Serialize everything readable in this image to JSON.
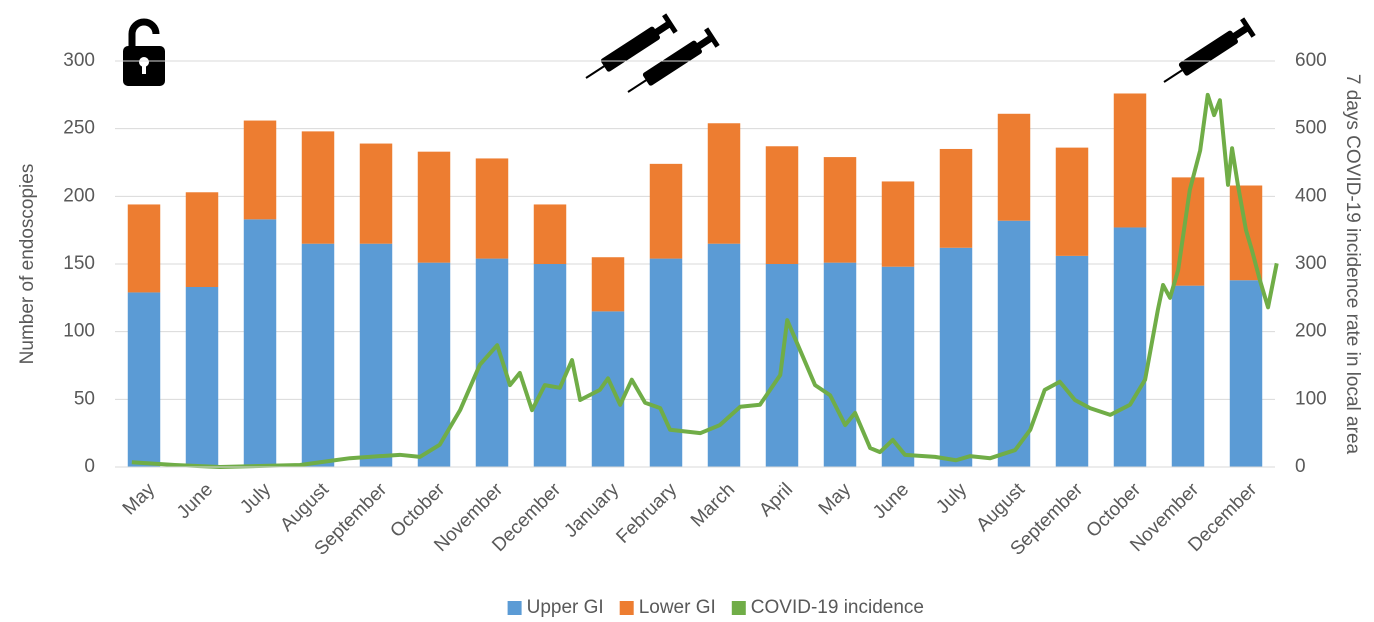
{
  "chart_data": {
    "type": "bar",
    "stacked": true,
    "categories": [
      "May",
      "June",
      "July",
      "August",
      "September",
      "October",
      "November",
      "December",
      "January",
      "February",
      "March",
      "April",
      "May",
      "June",
      "July",
      "August",
      "September",
      "October",
      "November",
      "December"
    ],
    "series": [
      {
        "name": "Upper GI",
        "color": "#5b9bd5",
        "values": [
          129,
          133,
          183,
          165,
          165,
          151,
          154,
          150,
          115,
          154,
          165,
          150,
          151,
          148,
          162,
          182,
          156,
          177,
          134,
          138
        ]
      },
      {
        "name": "Lower GI",
        "color": "#ed7d31",
        "values": [
          65,
          70,
          73,
          83,
          74,
          82,
          74,
          44,
          40,
          70,
          89,
          87,
          78,
          63,
          73,
          79,
          80,
          99,
          80,
          70
        ]
      },
      {
        "name": "COVID-19 incidence",
        "color": "#70ad47",
        "type": "line",
        "axis": "y2",
        "x": [
          -0.21,
          0.53,
          1.31,
          2.69,
          3.21,
          3.55,
          4.07,
          4.41,
          4.76,
          5.1,
          5.45,
          5.79,
          6.09,
          6.31,
          6.48,
          6.69,
          6.91,
          7.17,
          7.38,
          7.52,
          7.86,
          8.0,
          8.21,
          8.41,
          8.64,
          8.9,
          9.07,
          9.59,
          9.93,
          10.28,
          10.62,
          10.97,
          11.09,
          11.31,
          11.57,
          11.83,
          12.09,
          12.26,
          12.52,
          12.69,
          12.91,
          13.12,
          13.64,
          14.0,
          14.24,
          14.59,
          15.02,
          15.28,
          15.53,
          15.79,
          16.05,
          16.31,
          16.66,
          17.0,
          17.26,
          17.48,
          17.57,
          17.69,
          17.83,
          18.03,
          18.21,
          18.34,
          18.45,
          18.55,
          18.69,
          18.76,
          18.86,
          19.0,
          19.1,
          19.24,
          19.38,
          19.53
        ],
        "values": [
          7,
          3,
          0,
          3,
          9,
          13,
          16,
          18,
          15,
          33,
          84,
          151,
          180,
          121,
          139,
          84,
          121,
          117,
          158,
          99,
          114,
          131,
          92,
          129,
          95,
          87,
          55,
          50,
          62,
          89,
          92,
          136,
          217,
          173,
          121,
          106,
          62,
          80,
          28,
          22,
          40,
          18,
          15,
          10,
          16,
          13,
          25,
          55,
          114,
          126,
          99,
          87,
          77,
          92,
          129,
          232,
          269,
          250,
          291,
          409,
          468,
          550,
          520,
          542,
          417,
          471,
          417,
          350,
          321,
          276,
          236,
          301
        ]
      }
    ],
    "y_label": "Number of endoscopies",
    "y2_label": "7 days COVID-19 incidence rate in local area",
    "ylim": [
      0,
      300
    ],
    "yticks": [
      0,
      50,
      100,
      150,
      200,
      250,
      300
    ],
    "y2lim": [
      0,
      600
    ],
    "y2ticks": [
      0,
      100,
      200,
      300,
      400,
      500,
      600
    ],
    "grid": true,
    "legend": "bottom"
  }
}
